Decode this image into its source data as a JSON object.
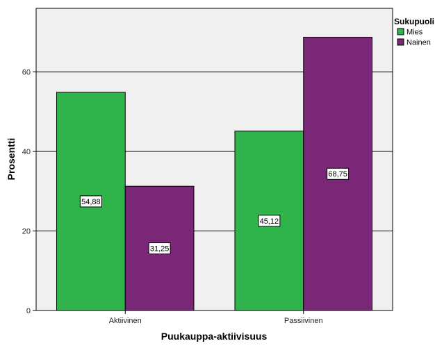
{
  "chart_data": {
    "type": "bar",
    "title": "",
    "xlabel": "Puukauppa-aktiivisuus",
    "ylabel": "Prosentti",
    "categories": [
      "Aktiivinen",
      "Passiivinen"
    ],
    "series": [
      {
        "name": "Mies",
        "color": "#2fb34a",
        "values": [
          54.88,
          45.12
        ],
        "labels": [
          "54,88",
          "45,12"
        ]
      },
      {
        "name": "Nainen",
        "color": "#7b2778",
        "values": [
          31.25,
          68.75
        ],
        "labels": [
          "31,25",
          "68,75"
        ]
      }
    ],
    "ylim": [
      0,
      76
    ],
    "yticks": [
      0,
      20,
      40,
      60
    ],
    "ytick_labels": [
      "0",
      "20",
      "40",
      "60"
    ],
    "grid": true,
    "legend": {
      "title": "Sukupuoli",
      "position": "top-right"
    },
    "colors": {
      "plot_background": "#f0f0f0",
      "gridline": "#000000",
      "bar_border": "#000000"
    }
  }
}
